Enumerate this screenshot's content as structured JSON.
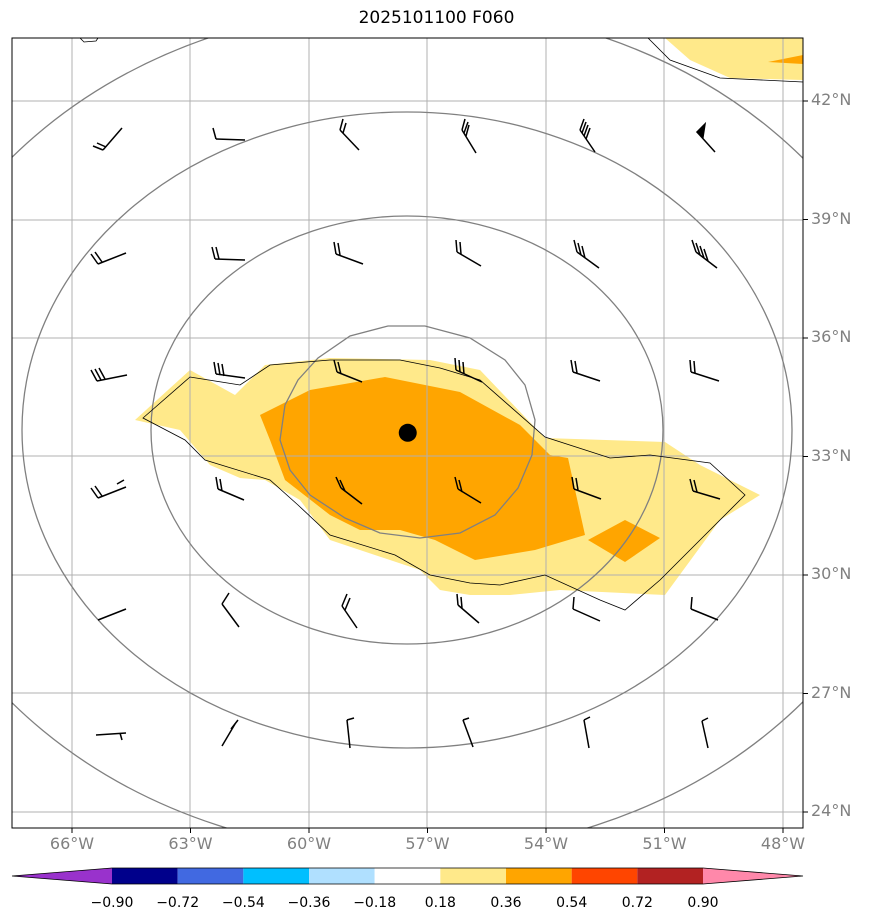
{
  "title": "2025101100 F060",
  "lat_ticks": [
    {
      "label": "42°N",
      "lat": 42
    },
    {
      "label": "39°N",
      "lat": 39
    },
    {
      "label": "36°N",
      "lat": 36
    },
    {
      "label": "33°N",
      "lat": 33
    },
    {
      "label": "30°N",
      "lat": 30
    },
    {
      "label": "27°N",
      "lat": 27
    },
    {
      "label": "24°N",
      "lat": 24
    }
  ],
  "lon_ticks": [
    {
      "label": "66°W",
      "lon": -66
    },
    {
      "label": "63°W",
      "lon": -63
    },
    {
      "label": "60°W",
      "lon": -60
    },
    {
      "label": "57°W",
      "lon": -57
    },
    {
      "label": "54°W",
      "lon": -54
    },
    {
      "label": "51°W",
      "lon": -51
    },
    {
      "label": "48°W",
      "lon": -48
    }
  ],
  "colorbar": {
    "levels": [
      "−0.90",
      "−0.72",
      "−0.54",
      "−0.36",
      "−0.18",
      "0.18",
      "0.36",
      "0.54",
      "0.72",
      "0.90"
    ],
    "colors": [
      "#9932cc",
      "#00008b",
      "#4169e1",
      "#00bfff",
      "#b0e0ff",
      "#ffffff",
      "#ffe98a",
      "#ffa500",
      "#ff4500",
      "#b22222",
      "#ff88aa"
    ]
  },
  "center_marker": {
    "lon": -57.5,
    "lat": 33.6
  },
  "colors": {
    "grid": "#b0b0b0",
    "contour": "#808080",
    "light_fill": "#ffe98a",
    "orange_fill": "#ffa500"
  }
}
